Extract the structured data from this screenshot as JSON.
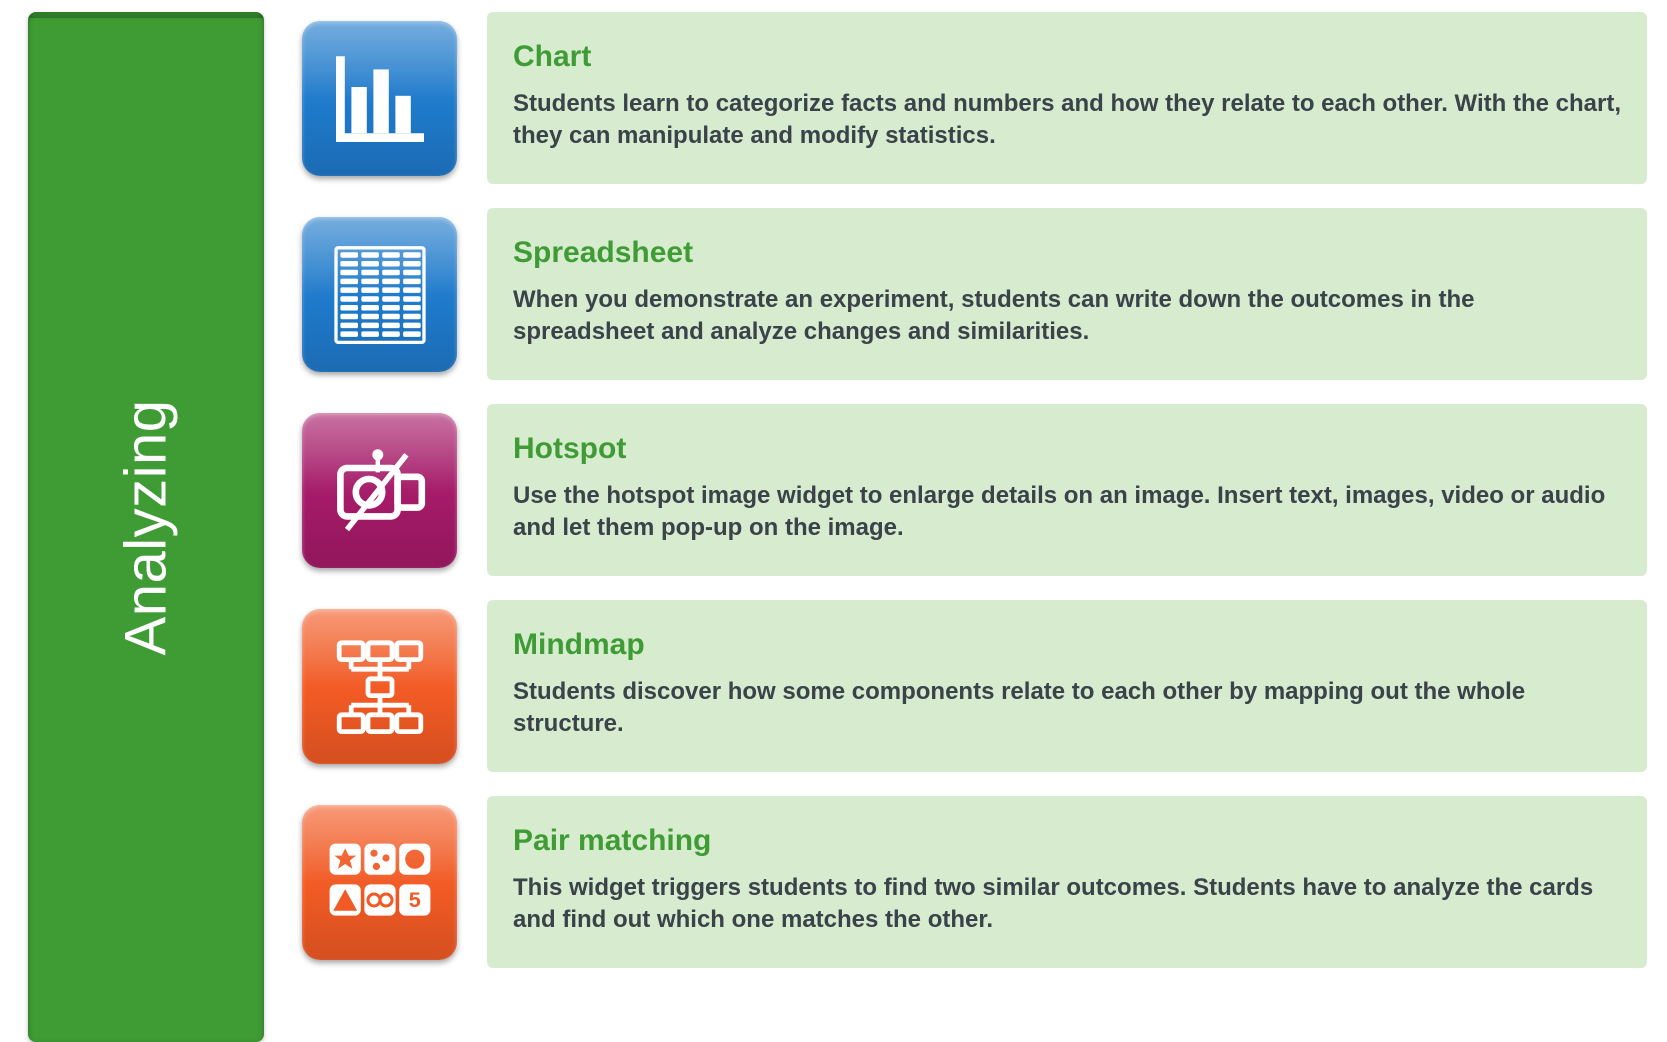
{
  "colors": {
    "sidebar_bg": "#3f9c35",
    "sidebar_border": "#2e7a27",
    "card_bg": "#d7ebcf",
    "title_color": "#3f9c35",
    "desc_color": "#3a424a",
    "icon_blue": "#1f7acb",
    "icon_magenta": "#a51a68",
    "icon_orange": "#f15a24",
    "icon_stroke": "#ffffff"
  },
  "sidebar": {
    "label": "Analyzing"
  },
  "items": [
    {
      "icon": "chart",
      "icon_color_key": "icon_blue",
      "title": "Chart",
      "description": "Students learn to categorize facts and numbers and how they relate to each other. With the chart, they can manipulate and modify statistics."
    },
    {
      "icon": "spreadsheet",
      "icon_color_key": "icon_blue",
      "title": "Spreadsheet",
      "description": "When you demonstrate an experiment, students can write down the outcomes in the spreadsheet and analyze changes and similarities."
    },
    {
      "icon": "hotspot",
      "icon_color_key": "icon_magenta",
      "title": "Hotspot",
      "description": "Use the hotspot image widget to enlarge details on an image. Insert text, images, video or audio and let them pop-up on the image."
    },
    {
      "icon": "mindmap",
      "icon_color_key": "icon_orange",
      "title": "Mindmap",
      "description": "Students discover how some components relate to each other by mapping out the whole structure."
    },
    {
      "icon": "pairmatching",
      "icon_color_key": "icon_orange",
      "title": "Pair matching",
      "description": "This widget triggers students to find two similar outcomes. Students have to analyze the cards and find out which one matches the other."
    }
  ]
}
